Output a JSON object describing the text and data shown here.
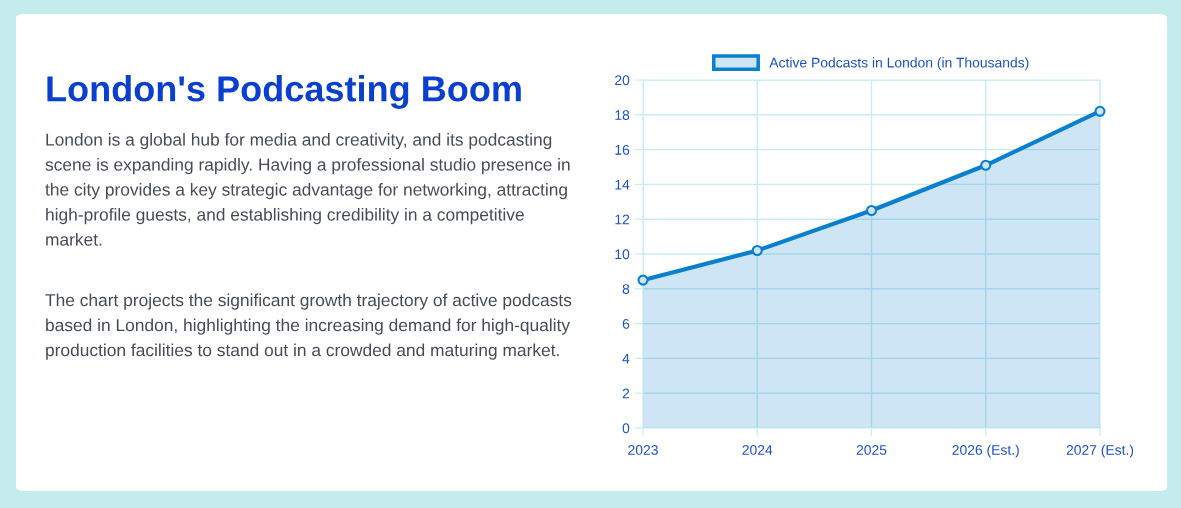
{
  "chart_data": {
    "type": "area",
    "title": "London's Podcasting Boom",
    "annotations": [
      "London is a global hub for media and creativity, and its podcasting scene is expanding rapidly. Having a professional studio presence in the city provides a key strategic advantage for networking, attracting high-profile guests, and establishing credibility in a competitive market.",
      "The chart projects the significant growth trajectory of active podcasts based in London, highlighting the increasing demand for high-quality production facilities to stand out in a crowded and maturing market."
    ],
    "categories": [
      "2023",
      "2024",
      "2025",
      "2026 (Est.)",
      "2027 (Est.)"
    ],
    "series": [
      {
        "name": "Active Podcasts in London (in Thousands)",
        "color": "#0a7fd0",
        "values": [
          8.5,
          10.2,
          12.5,
          15.1,
          18.2
        ]
      }
    ],
    "ylim": [
      0,
      20
    ],
    "yticks": [
      0,
      2,
      4,
      6,
      8,
      10,
      12,
      14,
      16,
      18,
      20
    ],
    "grid": true,
    "legend": "top",
    "marker": "circle",
    "line_style": "solid"
  }
}
